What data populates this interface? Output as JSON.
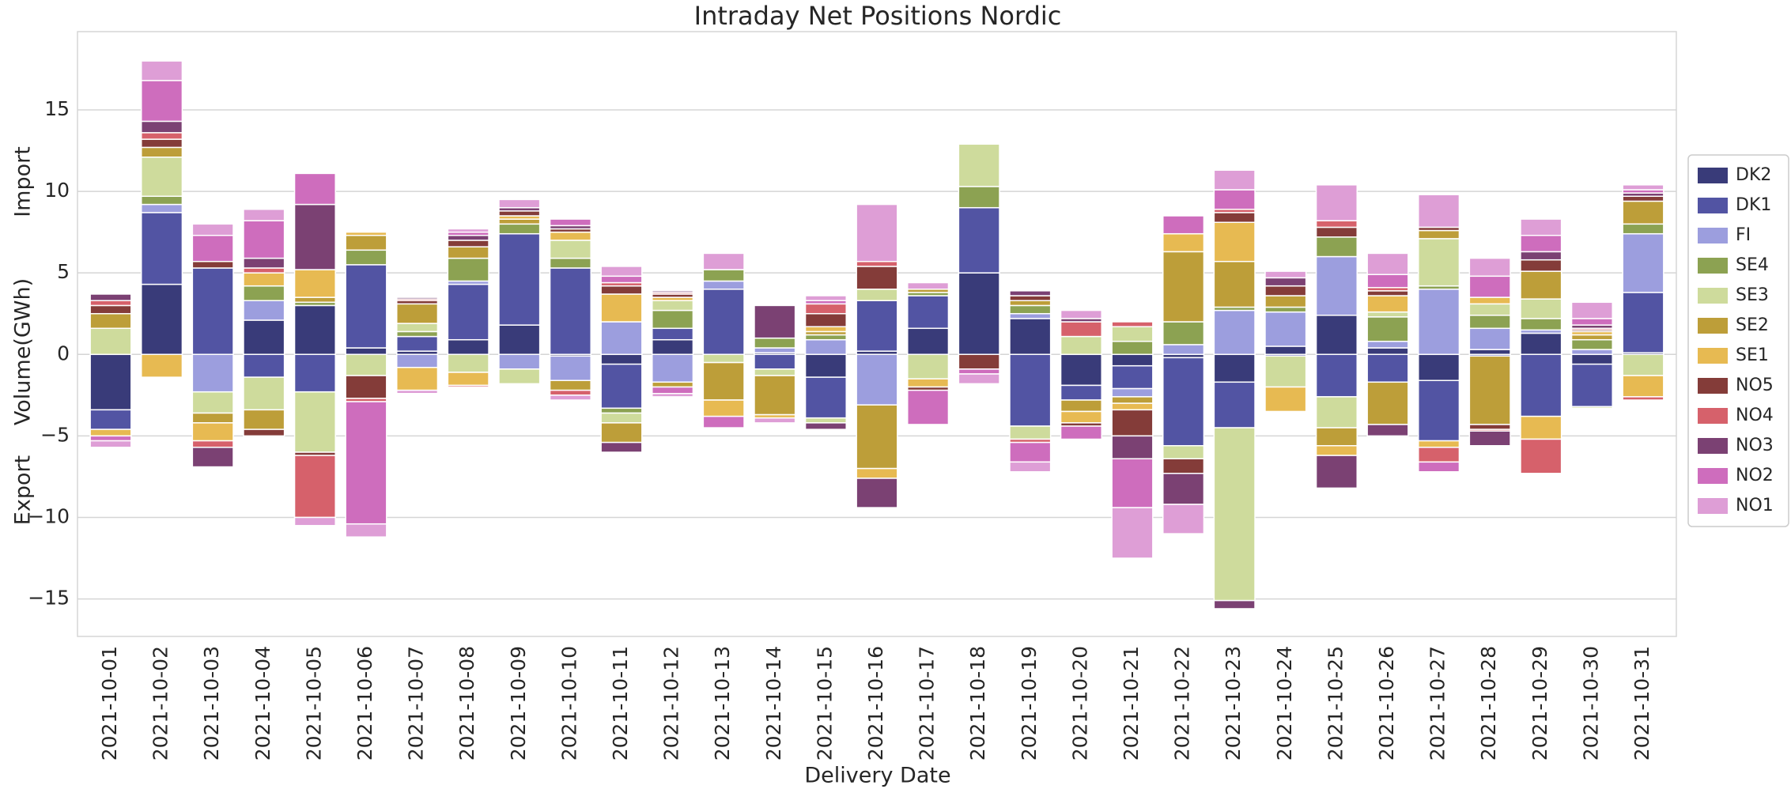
{
  "chart_data": {
    "type": "stacked_bar",
    "title": "Intraday Net Positions Nordic",
    "y_label": "Volume(GWh)",
    "x_label": "Delivery Date",
    "annotations": [
      "Import",
      "Export"
    ],
    "categories": [
      "2021-10-01",
      "2021-10-02",
      "2021-10-03",
      "2021-10-04",
      "2021-10-05",
      "2021-10-06",
      "2021-10-07",
      "2021-10-08",
      "2021-10-09",
      "2021-10-10",
      "2021-10-11",
      "2021-10-12",
      "2021-10-13",
      "2021-10-14",
      "2021-10-15",
      "2021-10-16",
      "2021-10-17",
      "2021-10-18",
      "2021-10-19",
      "2021-10-20",
      "2021-10-21",
      "2021-10-22",
      "2021-10-23",
      "2021-10-24",
      "2021-10-25",
      "2021-10-26",
      "2021-10-27",
      "2021-10-28",
      "2021-10-29",
      "2021-10-30",
      "2021-10-31"
    ],
    "series": [
      {
        "name": "DK2",
        "color": "#393b79",
        "values": [
          -3.4,
          4.3,
          0,
          2.1,
          3.0,
          0.4,
          0.2,
          0.9,
          1.8,
          -0.1,
          -0.6,
          0.9,
          0,
          0.1,
          -1.4,
          0.2,
          1.6,
          5.0,
          2.2,
          -1.9,
          -0.7,
          -0.2,
          -1.7,
          0.5,
          2.4,
          0.4,
          -1.6,
          0.3,
          1.3,
          -0.6,
          0.1
        ]
      },
      {
        "name": "DK1",
        "color": "#5254a3",
        "values": [
          -1.2,
          4.4,
          5.3,
          -1.4,
          -2.3,
          5.1,
          0.9,
          3.4,
          5.6,
          5.3,
          -2.7,
          0.7,
          4.0,
          -0.9,
          -2.5,
          3.1,
          2.0,
          4.0,
          -4.4,
          -0.9,
          -1.4,
          -5.4,
          -2.8,
          -0.1,
          -2.6,
          -1.7,
          -3.7,
          -0.1,
          -3.8,
          -2.6,
          3.7
        ]
      },
      {
        "name": "FI",
        "color": "#9c9ede",
        "values": [
          0,
          0.5,
          -2.3,
          1.2,
          0,
          0,
          -0.8,
          0.2,
          -0.9,
          -1.5,
          2.0,
          -1.7,
          0.5,
          0.3,
          0.9,
          -3.1,
          0,
          0,
          0.3,
          0,
          -0.5,
          0.6,
          2.7,
          2.1,
          3.6,
          0.4,
          4.0,
          1.3,
          0.2,
          0.3,
          3.6
        ]
      },
      {
        "name": "SE4",
        "color": "#8ca252",
        "values": [
          0,
          0.5,
          0,
          0.9,
          0.2,
          0.9,
          0.3,
          1.4,
          0.6,
          0.6,
          -0.3,
          1.1,
          0.7,
          0.6,
          0.3,
          0,
          0.2,
          1.3,
          0.5,
          0,
          0.8,
          1.4,
          0.2,
          0.3,
          1.2,
          1.5,
          0.2,
          0.8,
          0.7,
          0.6,
          0.6
        ]
      },
      {
        "name": "SE3",
        "color": "#cedb9c",
        "values": [
          1.6,
          2.4,
          -1.3,
          -2.0,
          -3.7,
          -1.3,
          0.5,
          -1.1,
          -0.9,
          1.1,
          -0.6,
          0.6,
          -0.5,
          -0.4,
          -0.3,
          0.7,
          -1.5,
          2.6,
          -0.8,
          1.1,
          0.9,
          -0.8,
          -10.6,
          -1.9,
          -1.9,
          0.3,
          2.9,
          0.7,
          1.2,
          -0.1,
          -1.3
        ]
      },
      {
        "name": "SE2",
        "color": "#bd9e39",
        "values": [
          0.9,
          0.6,
          -0.6,
          -1.2,
          0.3,
          0.9,
          1.2,
          0.7,
          0.3,
          -0.6,
          -1.2,
          -0.3,
          -2.3,
          -2.4,
          0.2,
          -3.9,
          0.2,
          0,
          0.3,
          -0.7,
          -0.4,
          4.3,
          2.8,
          0.7,
          -1.1,
          -2.6,
          0.5,
          -4.2,
          1.7,
          0.3,
          1.4
        ]
      },
      {
        "name": "SE1",
        "color": "#e7ba52",
        "values": [
          -0.4,
          -1.4,
          -1.1,
          0.8,
          1.7,
          0.2,
          -1.4,
          -0.8,
          0.2,
          0.5,
          1.7,
          0.2,
          -1.0,
          -0.2,
          0.3,
          -0.6,
          -0.5,
          0,
          0,
          -0.7,
          -0.4,
          1.1,
          2.4,
          -1.5,
          -0.6,
          1.0,
          -0.4,
          0.4,
          -1.4,
          0.2,
          -1.3
        ]
      },
      {
        "name": "NO5",
        "color": "#843c39",
        "values": [
          0.5,
          0.5,
          0.4,
          -0.4,
          -0.2,
          -1.4,
          0.2,
          0.4,
          0.3,
          0.2,
          0.5,
          0.2,
          0,
          0,
          0.8,
          1.4,
          -0.2,
          -0.9,
          0.3,
          -0.2,
          -1.6,
          -0.9,
          0.6,
          0.6,
          0.6,
          0.3,
          0.2,
          -0.3,
          0.7,
          0.1,
          0.3
        ]
      },
      {
        "name": "NO4",
        "color": "#d6616b",
        "values": [
          0.3,
          0.4,
          -0.4,
          0.3,
          -3.8,
          -0.2,
          0.1,
          -0.1,
          0,
          -0.3,
          0.2,
          0.1,
          0,
          0,
          0.6,
          0.3,
          0,
          0,
          -0.2,
          0.9,
          0.3,
          0,
          0.2,
          0,
          0.4,
          0.2,
          -0.9,
          -0.1,
          -2.1,
          0.1,
          -0.2
        ]
      },
      {
        "name": "NO3",
        "color": "#7b4173",
        "values": [
          0.4,
          0.7,
          -1.2,
          0.6,
          4.0,
          0,
          0.1,
          0.3,
          0.2,
          0.2,
          -0.6,
          0.1,
          0,
          2.0,
          -0.4,
          -1.8,
          0,
          0,
          0.3,
          0.2,
          -1.4,
          -1.9,
          -0.5,
          0.5,
          -2.0,
          -0.7,
          0,
          -0.9,
          0.5,
          0.2,
          0.2
        ]
      },
      {
        "name": "NO2",
        "color": "#ce6dbd",
        "values": [
          -0.3,
          2.5,
          1.6,
          2.3,
          1.9,
          -7.5,
          0,
          0.2,
          0,
          0.4,
          0.4,
          -0.4,
          -0.7,
          0,
          0.2,
          0,
          -2.1,
          -0.3,
          -1.2,
          -0.8,
          -3.0,
          1.1,
          1.2,
          0,
          0,
          0.8,
          -0.6,
          1.3,
          1.0,
          0.4,
          0.2
        ]
      },
      {
        "name": "NO1",
        "color": "#de9ed6",
        "values": [
          -0.4,
          1.2,
          0.7,
          0.7,
          -0.5,
          -0.8,
          -0.2,
          0.2,
          0.5,
          -0.3,
          0.6,
          -0.2,
          1.0,
          -0.3,
          0.3,
          3.5,
          0.4,
          -0.6,
          -0.6,
          0.5,
          -3.1,
          -1.8,
          1.2,
          0.4,
          2.2,
          1.3,
          2.0,
          1.1,
          1.0,
          1.0,
          0.3
        ]
      }
    ],
    "ylim": [
      -17.3,
      19.8
    ],
    "yticks": [
      {
        "value": -15,
        "label": "−15"
      },
      {
        "value": -10,
        "label": "−10"
      },
      {
        "value": -5,
        "label": "−5"
      },
      0,
      5,
      10,
      15
    ],
    "grid": true,
    "legend": "right"
  }
}
